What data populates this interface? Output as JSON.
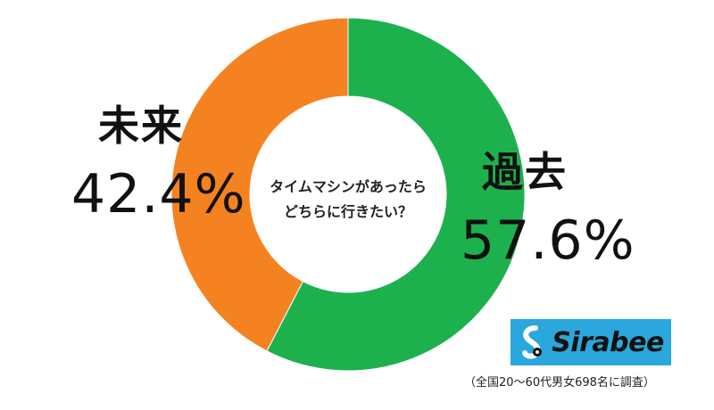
{
  "chart_data": {
    "type": "pie",
    "categories": [
      "過去",
      "未来"
    ],
    "values": [
      57.6,
      42.4
    ],
    "value_labels": [
      "57.6%",
      "42.4%"
    ],
    "colors": [
      "#1db14e",
      "#f58220"
    ],
    "donut": true,
    "center_text": [
      "タイムマシンがあったら",
      "どちらに行きたい？"
    ]
  },
  "labels": {
    "past_name": "過去",
    "past_value": "57.6%",
    "future_name": "未来",
    "future_value": "42.4%"
  },
  "logo": {
    "text": "Sirabee",
    "background": "#2aa7dc"
  },
  "footnote": "（全国20〜60代男女698名に調査）"
}
